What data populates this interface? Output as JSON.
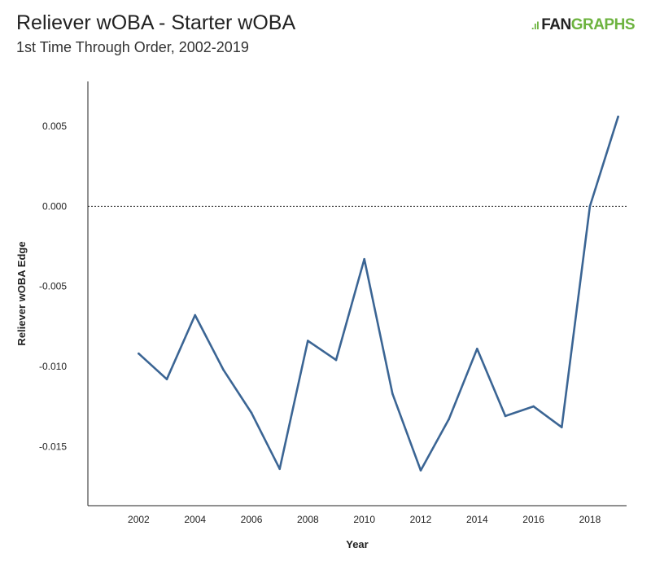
{
  "header": {
    "title": "Reliever wOBA - Starter wOBA",
    "subtitle": "1st Time Through Order, 2002-2019",
    "logo_mark": ".ıl",
    "logo_text_1": "FAN",
    "logo_text_2": "GRAPHS"
  },
  "colors": {
    "line": "#3b6594",
    "axis": "#222222",
    "logo_green": "#6db33f"
  },
  "chart_data": {
    "type": "line",
    "title": "Reliever wOBA - Starter wOBA",
    "subtitle": "1st Time Through Order, 2002-2019",
    "xlabel": "Year",
    "ylabel": "Reliever wOBA Edge",
    "x": [
      2002,
      2003,
      2004,
      2005,
      2006,
      2007,
      2008,
      2009,
      2010,
      2011,
      2012,
      2013,
      2014,
      2015,
      2016,
      2017,
      2018,
      2019
    ],
    "series": [
      {
        "values": [
          -0.0092,
          -0.0108,
          -0.0068,
          -0.0102,
          -0.0129,
          -0.0164,
          -0.0084,
          -0.0096,
          -0.0033,
          -0.0117,
          -0.0165,
          -0.0133,
          -0.0089,
          -0.0131,
          -0.0125,
          -0.0138,
          0.0,
          0.0056
        ]
      }
    ],
    "xticks": [
      "2002",
      "2004",
      "2006",
      "2008",
      "2010",
      "2012",
      "2014",
      "2016",
      "2018"
    ],
    "yticks": [
      "0.005",
      "0.000",
      "-0.005",
      "-0.010",
      "-0.015"
    ],
    "xlim": [
      2000.2,
      2019.3
    ],
    "ylim": [
      -0.0187,
      0.0078
    ],
    "reference_line": 0.0,
    "grid": false,
    "legend": "none"
  }
}
